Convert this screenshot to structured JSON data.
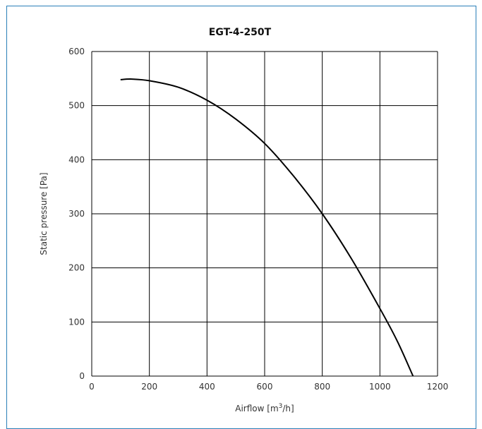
{
  "chart_data": {
    "type": "line",
    "title": "EGT-4-250T",
    "xlabel_prefix": "Airflow [m",
    "xlabel_sup": "3",
    "xlabel_suffix": "/h]",
    "ylabel": "Static pressure [Pa]",
    "xlim": [
      0,
      1200
    ],
    "ylim": [
      0,
      600
    ],
    "xticks": [
      0,
      200,
      400,
      600,
      800,
      1000,
      1200
    ],
    "yticks": [
      0,
      100,
      200,
      300,
      400,
      500,
      600
    ],
    "grid": true,
    "colors": {
      "frame": "#2a7fb8",
      "line": "#000000",
      "grid": "#000000"
    },
    "series": [
      {
        "x": [
          100,
          140,
          200,
          300,
          400,
          500,
          600,
          700,
          800,
          900,
          1000,
          1060,
          1115
        ],
        "y": [
          548,
          549,
          546,
          534,
          510,
          475,
          430,
          370,
          300,
          218,
          125,
          65,
          0
        ]
      }
    ]
  }
}
